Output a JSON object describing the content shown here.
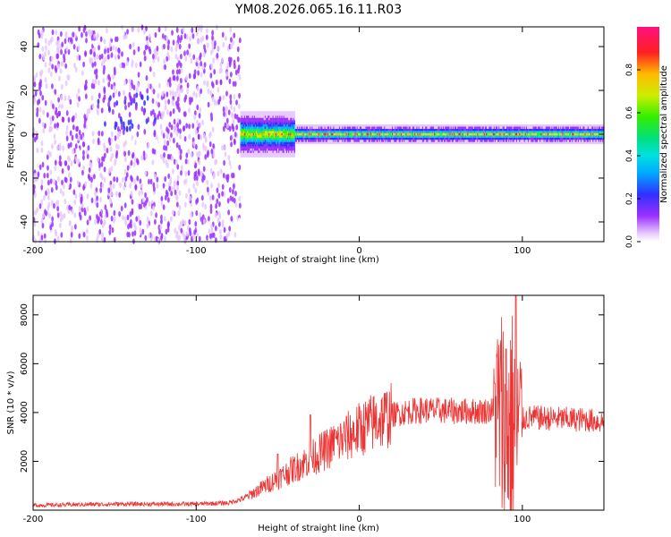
{
  "title": "YM08.2026.065.16.11.R03",
  "chart_data": [
    {
      "type": "heatmap",
      "xlabel": "Height of straight line (km)",
      "ylabel": "Frequency (Hz)",
      "xlim": [
        -200,
        150
      ],
      "ylim": [
        -49,
        49
      ],
      "xticks": [
        -200,
        -100,
        0,
        100
      ],
      "yticks": [
        -40,
        -20,
        0,
        20,
        40
      ],
      "colorbar": {
        "label": "Normalized spectral amplitude",
        "range": [
          0,
          1
        ],
        "ticks": [
          "0.0",
          "0.2",
          "0.4",
          "0.6",
          "0.8"
        ]
      },
      "regions": [
        {
          "x_range": [
            -200,
            -73
          ],
          "description_value": "broadband noise, amplitude 0.0-0.25"
        },
        {
          "x_range": [
            -73,
            150
          ],
          "center_frequency_hz": 0,
          "peak_amplitude": 0.95
        }
      ],
      "grid": false
    },
    {
      "type": "line",
      "xlabel": "Height of straight line (km)",
      "ylabel": "SNR (10 * v/v)",
      "xlim": [
        -200,
        150
      ],
      "ylim": [
        0,
        8800
      ],
      "xticks": [
        -200,
        -100,
        0,
        100
      ],
      "yticks": [
        2000,
        4000,
        6000,
        8000
      ],
      "series_color": "#ee3333",
      "trend_points": [
        [
          -200,
          200
        ],
        [
          -150,
          250
        ],
        [
          -100,
          250
        ],
        [
          -80,
          300
        ],
        [
          -70,
          500
        ],
        [
          -60,
          900
        ],
        [
          -50,
          1300
        ],
        [
          -40,
          1700
        ],
        [
          -30,
          2100
        ],
        [
          -20,
          2500
        ],
        [
          -10,
          2900
        ],
        [
          0,
          3300
        ],
        [
          10,
          3650
        ],
        [
          20,
          3900
        ],
        [
          30,
          4050
        ],
        [
          40,
          4100
        ],
        [
          60,
          4050
        ],
        [
          75,
          4050
        ],
        [
          82,
          4100
        ],
        [
          85,
          4000
        ],
        [
          90,
          3500
        ],
        [
          95,
          3500
        ],
        [
          100,
          3700
        ],
        [
          105,
          3800
        ],
        [
          120,
          3750
        ],
        [
          140,
          3700
        ],
        [
          150,
          3600
        ]
      ],
      "spikes": [
        {
          "x": -50,
          "y": 2300
        },
        {
          "x": -30,
          "y": 3900
        },
        {
          "x": -15,
          "y": 3300
        },
        {
          "x": 83,
          "y": 5200
        },
        {
          "x": 90,
          "y": 6600
        },
        {
          "x": 96,
          "y": 8800
        }
      ],
      "grid": false
    }
  ]
}
